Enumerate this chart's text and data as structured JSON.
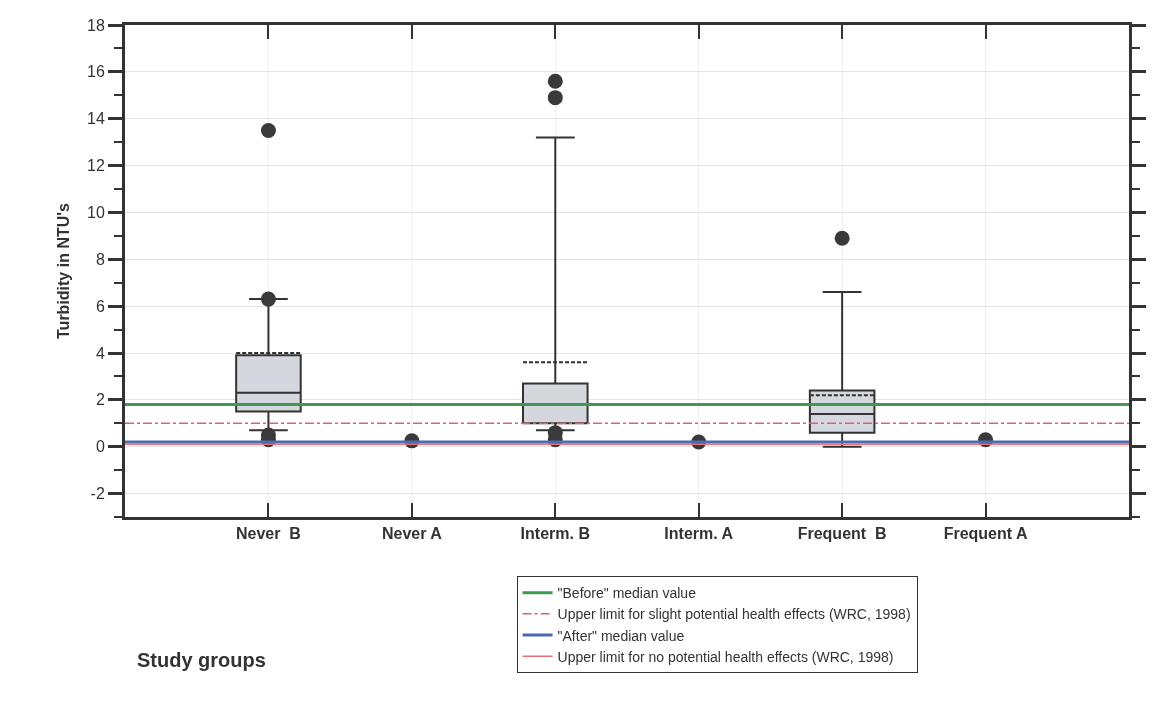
{
  "chart_data": {
    "type": "box",
    "annotations": [
      "Study groups"
    ],
    "ylabel": "Turbidity in NTU's",
    "categories": [
      "Never  B",
      "Never A",
      "Interm. B",
      "Interm. A",
      "Frequent  B",
      "Frequent A"
    ],
    "boxes": [
      {
        "low": 0.7,
        "q1": 1.5,
        "median": 2.3,
        "q3": 3.9,
        "high": 6.3,
        "mean": 4.0,
        "outliers": [
          13.5,
          6.3,
          0.5,
          0.3
        ]
      },
      null,
      {
        "low": 0.7,
        "q1": 1.0,
        "median": 1.8,
        "q3": 2.7,
        "high": 13.2,
        "mean": 3.6,
        "outliers": [
          15.6,
          14.9,
          0.6,
          0.3
        ]
      },
      null,
      {
        "low": 0.0,
        "q1": 0.6,
        "median": 1.4,
        "q3": 2.4,
        "high": 6.6,
        "mean": 2.2,
        "outliers": [
          8.9
        ]
      },
      null
    ],
    "series": [
      {
        "type": "scatter",
        "x": [
          "Never A",
          "Interm. A",
          "Frequent A"
        ],
        "values": [
          0.25,
          0.2,
          0.3
        ],
        "color": "#3a3a3a"
      }
    ],
    "color": "#d4d7dd",
    "ref_lines": [
      {
        "axis": "y",
        "value": 1.8,
        "label": "\"Before\" median value",
        "color": "#3d9a50",
        "line_style": "solid"
      },
      {
        "axis": "y",
        "value": 1.0,
        "label": "Upper limit for slight potential health effects (WRC, 1998)",
        "color": "#e0606e",
        "line_style": "dashdot"
      },
      {
        "axis": "y",
        "value": 0.2,
        "label": "\"After\" median value",
        "color": "#4a6cb0",
        "line_style": "solid"
      },
      {
        "axis": "y",
        "value": 0.1,
        "label": "Upper limit for no potential health effects (WRC, 1998)",
        "color": "#e8707a",
        "line_style": "solid"
      }
    ],
    "ylim": [
      -3,
      18
    ],
    "yticks": [
      -2,
      0,
      2,
      4,
      6,
      8,
      10,
      12,
      14,
      16,
      18
    ],
    "grid": true,
    "legend": "bottom right"
  }
}
